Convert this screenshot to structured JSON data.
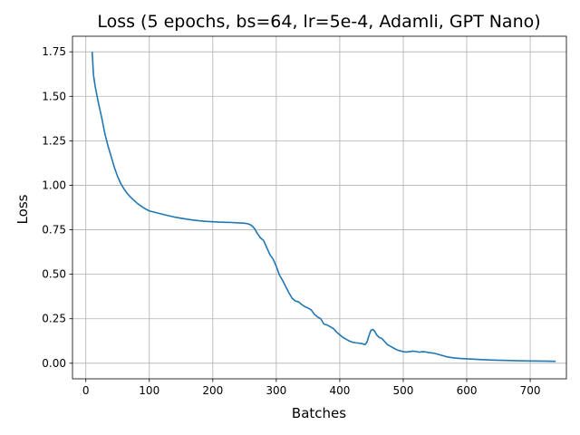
{
  "chart_data": {
    "type": "line",
    "title": "Loss (5 epochs, bs=64, lr=5e-4, Adamli, GPT Nano)",
    "xlabel": "Batches",
    "ylabel": "Loss",
    "xlim": [
      -21,
      757
    ],
    "ylim": [
      -0.0875,
      1.8375
    ],
    "xticks": [
      0,
      100,
      200,
      300,
      400,
      500,
      600,
      700
    ],
    "xtick_labels": [
      "0",
      "100",
      "200",
      "300",
      "400",
      "500",
      "600",
      "700"
    ],
    "yticks": [
      0.0,
      0.25,
      0.5,
      0.75,
      1.0,
      1.25,
      1.5,
      1.75
    ],
    "ytick_labels": [
      "0.00",
      "0.25",
      "0.50",
      "0.75",
      "1.00",
      "1.25",
      "1.50",
      "1.75"
    ],
    "grid": true,
    "line_color": "#1f77b4",
    "series": [
      {
        "x": [
          10,
          12,
          15,
          20,
          25,
          30,
          35,
          40,
          45,
          50,
          55,
          60,
          65,
          70,
          75,
          80,
          85,
          90,
          95,
          100,
          110,
          120,
          130,
          140,
          150,
          160,
          170,
          180,
          190,
          200,
          210,
          220,
          230,
          240,
          250,
          255,
          260,
          263,
          266,
          270,
          275,
          280,
          285,
          290,
          295,
          300,
          305,
          310,
          315,
          320,
          325,
          330,
          335,
          340,
          345,
          350,
          355,
          360,
          365,
          370,
          375,
          380,
          385,
          390,
          395,
          400,
          405,
          410,
          415,
          420,
          425,
          430,
          435,
          440,
          443,
          446,
          449,
          452,
          455,
          458,
          462,
          466,
          470,
          475,
          480,
          485,
          490,
          495,
          500,
          505,
          510,
          515,
          520,
          525,
          530,
          535,
          540,
          545,
          550,
          555,
          560,
          565,
          570,
          580,
          590,
          600,
          620,
          640,
          660,
          680,
          700,
          720,
          740
        ],
        "y": [
          1.75,
          1.62,
          1.55,
          1.46,
          1.38,
          1.29,
          1.22,
          1.16,
          1.1,
          1.05,
          1.01,
          0.98,
          0.955,
          0.935,
          0.918,
          0.902,
          0.888,
          0.876,
          0.865,
          0.856,
          0.847,
          0.838,
          0.829,
          0.821,
          0.815,
          0.809,
          0.804,
          0.8,
          0.797,
          0.795,
          0.793,
          0.792,
          0.791,
          0.789,
          0.787,
          0.784,
          0.777,
          0.768,
          0.755,
          0.73,
          0.705,
          0.69,
          0.65,
          0.61,
          0.585,
          0.545,
          0.495,
          0.465,
          0.43,
          0.395,
          0.365,
          0.35,
          0.345,
          0.33,
          0.318,
          0.31,
          0.3,
          0.275,
          0.26,
          0.25,
          0.22,
          0.215,
          0.205,
          0.195,
          0.175,
          0.16,
          0.145,
          0.135,
          0.125,
          0.118,
          0.115,
          0.113,
          0.11,
          0.105,
          0.12,
          0.155,
          0.185,
          0.19,
          0.18,
          0.16,
          0.145,
          0.14,
          0.125,
          0.105,
          0.095,
          0.085,
          0.075,
          0.07,
          0.065,
          0.063,
          0.065,
          0.068,
          0.066,
          0.062,
          0.065,
          0.064,
          0.06,
          0.058,
          0.055,
          0.05,
          0.045,
          0.04,
          0.035,
          0.03,
          0.027,
          0.025,
          0.021,
          0.018,
          0.016,
          0.014,
          0.013,
          0.012,
          0.011
        ]
      }
    ]
  }
}
